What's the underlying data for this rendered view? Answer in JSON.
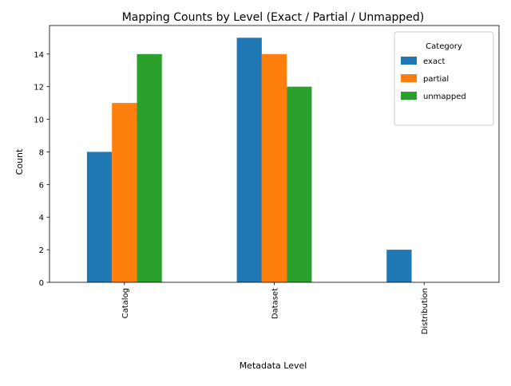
{
  "chart_data": {
    "type": "bar",
    "title": "Mapping Counts by Level (Exact / Partial / Unmapped)",
    "xlabel": "Metadata Level",
    "ylabel": "Count",
    "categories": [
      "Catalog",
      "Dataset",
      "Distribution"
    ],
    "series": [
      {
        "name": "exact",
        "values": [
          8,
          15,
          2
        ],
        "color": "#1f77b4"
      },
      {
        "name": "partial",
        "values": [
          11,
          14,
          0
        ],
        "color": "#ff7f0e"
      },
      {
        "name": "unmapped",
        "values": [
          14,
          12,
          0
        ],
        "color": "#2ca02c"
      }
    ],
    "ylim": [
      0,
      15.75
    ],
    "yticks": [
      0,
      2,
      4,
      6,
      8,
      10,
      12,
      14
    ],
    "grid": false,
    "legend": {
      "title": "Category",
      "placement": "top-right"
    }
  }
}
